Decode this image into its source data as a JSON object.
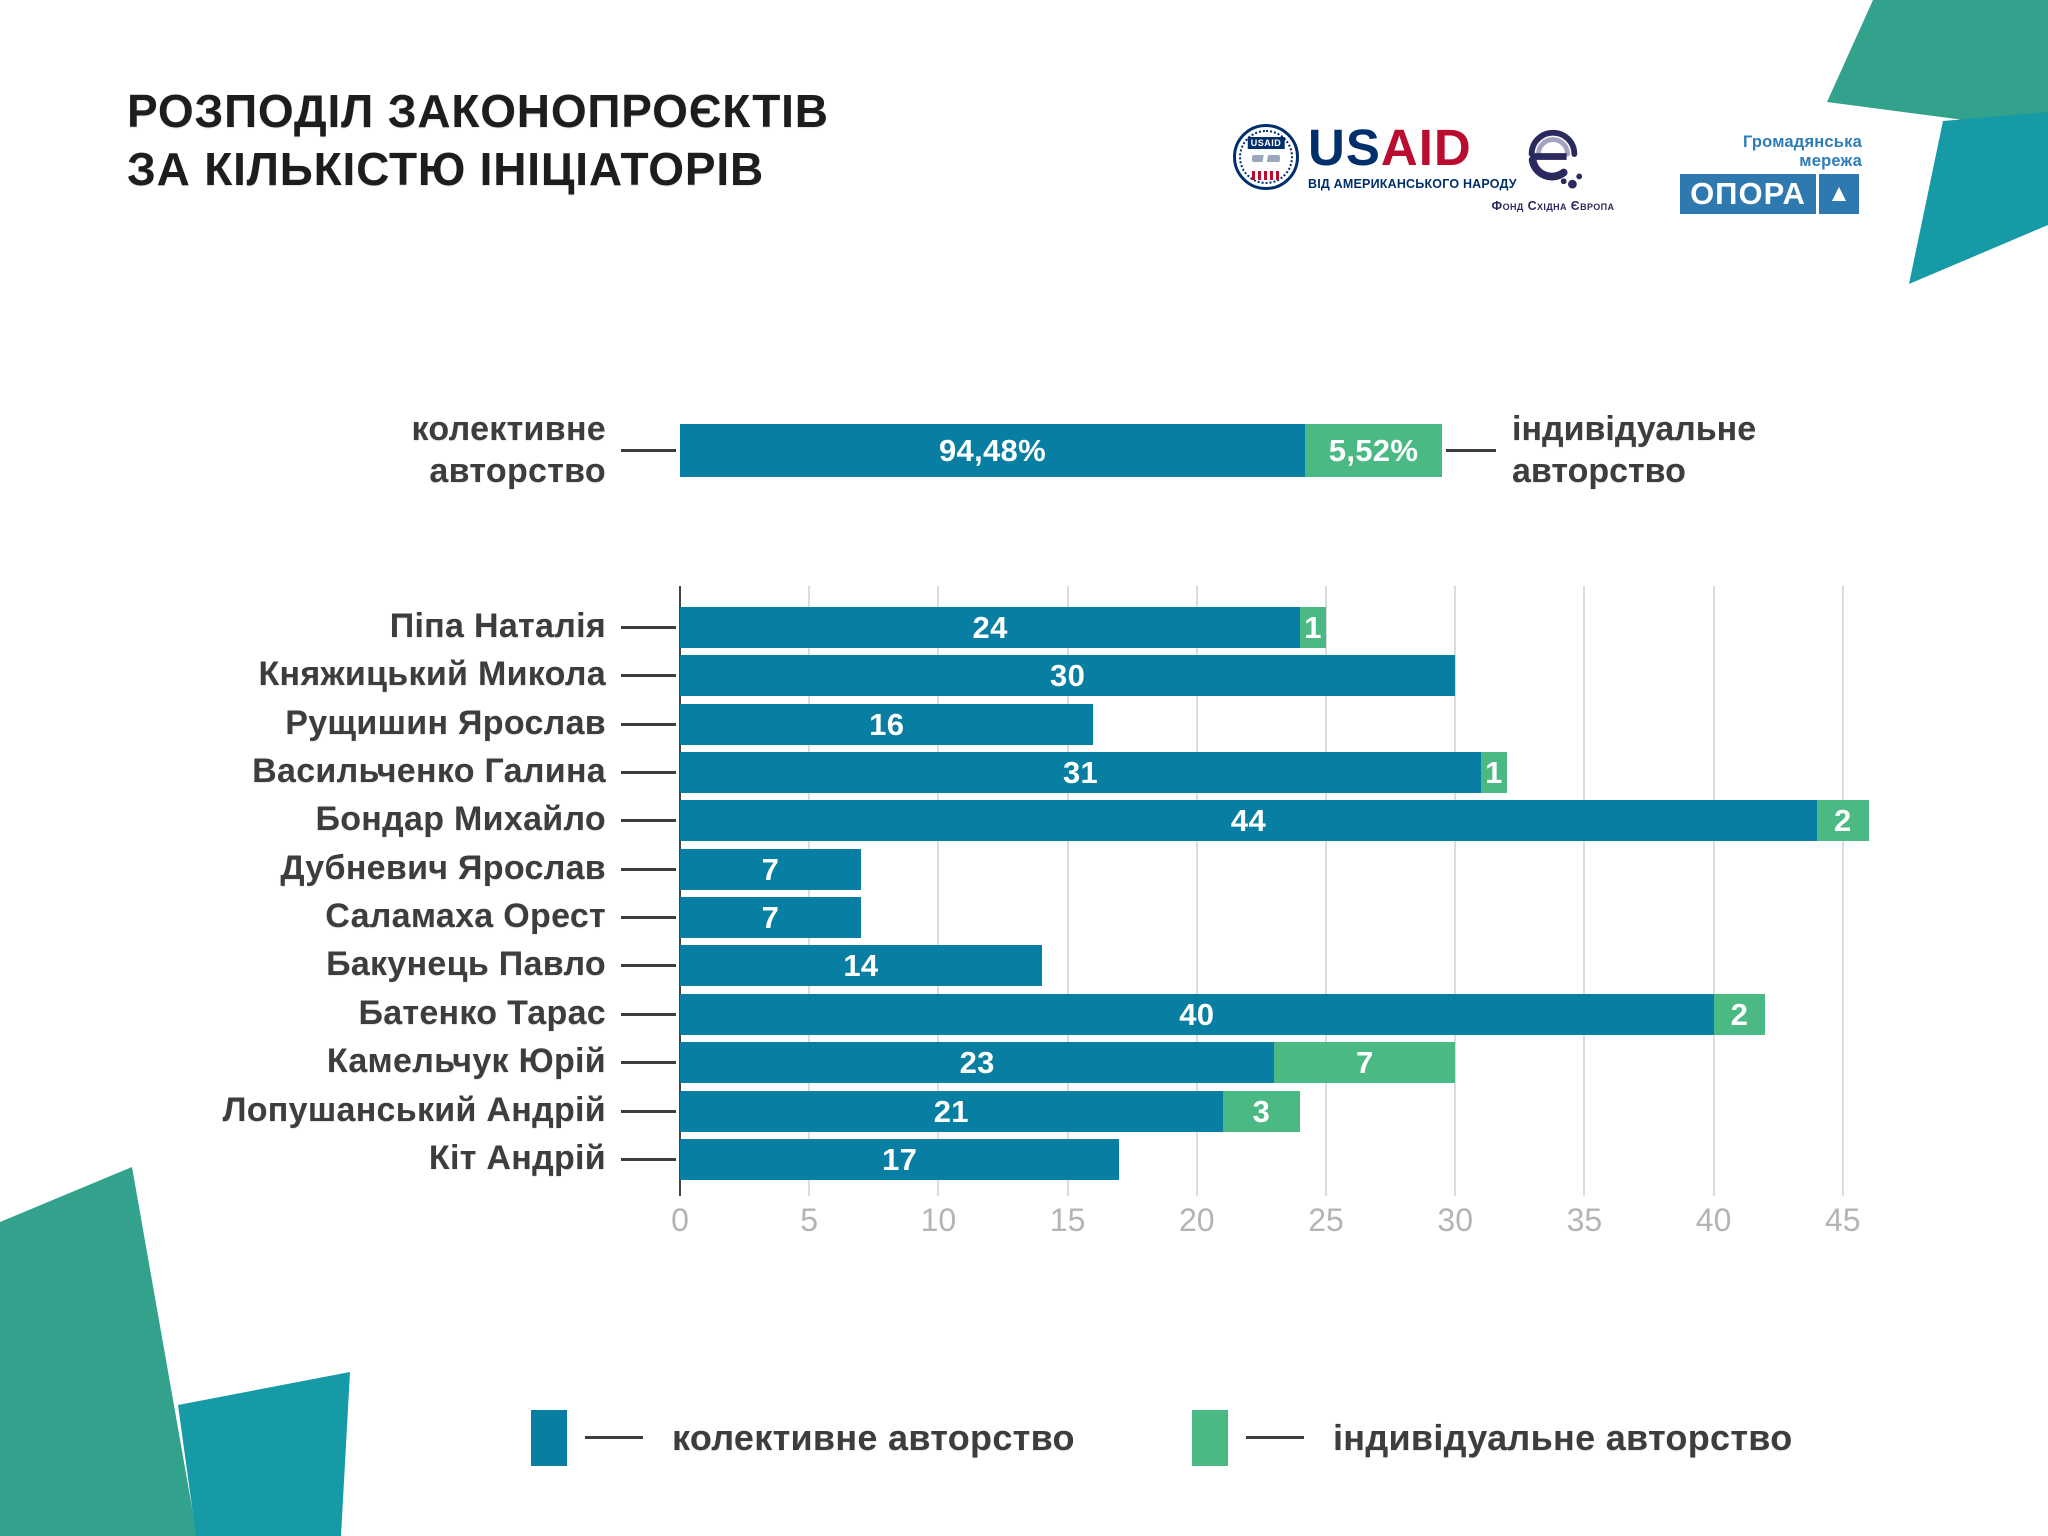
{
  "title": {
    "line1": "РОЗПОДІЛ ЗАКОНОПРОЄКТІВ",
    "line2": "ЗА КІЛЬКІСТЮ ІНІЦІАТОРІВ"
  },
  "logos": {
    "usaid": {
      "seal_label": "USAID",
      "word_us": "US",
      "word_aid": "AID",
      "tagline": "ВІД АМЕРИКАНСЬКОГО НАРОДУ"
    },
    "east_europe_foundation": {
      "name": "Фонд Східна Європа"
    },
    "opora": {
      "network_label": "Громадянська мережа",
      "name": "ОПОРА",
      "triangle_glyph": "▲"
    }
  },
  "summary_bar": {
    "left_label_line1": "колективне",
    "left_label_line2": "авторство",
    "right_label_line1": "індивідуальне",
    "right_label_line2": "авторство",
    "collective_value": "94,48%",
    "individual_value": "5,52%"
  },
  "chart_data": {
    "type": "bar",
    "orientation": "horizontal",
    "stacked": true,
    "categories": [
      "Піпа Наталія",
      "Княжицький Микола",
      "Рущишин Ярослав",
      "Васильченко Галина",
      "Бондар Михайло",
      "Дубневич Ярослав",
      "Саламаха Орест",
      "Бакунець Павло",
      "Батенко Тарас",
      "Камельчук Юрій",
      "Лопушанський Андрій",
      "Кіт Андрій"
    ],
    "series": [
      {
        "name": "колективне авторство",
        "color": "#087fa2",
        "values": [
          24,
          30,
          16,
          31,
          44,
          7,
          7,
          14,
          40,
          23,
          21,
          17
        ]
      },
      {
        "name": "індивідуальне авторство",
        "color": "#4ab983",
        "values": [
          1,
          0,
          0,
          1,
          2,
          0,
          0,
          0,
          2,
          7,
          3,
          0
        ]
      }
    ],
    "xticks": [
      0,
      5,
      10,
      15,
      20,
      25,
      30,
      35,
      40,
      45
    ],
    "xlim": [
      0,
      46
    ],
    "grid": true,
    "legend_position": "bottom",
    "summary": {
      "collective_pct": 94.48,
      "individual_pct": 5.52
    }
  },
  "legend": [
    {
      "label": "колективне авторство",
      "color": "#087fa2"
    },
    {
      "label": "індивідуальне авторство",
      "color": "#4ab983"
    }
  ],
  "colors": {
    "collective_teal": "#087fa2",
    "individual_green": "#4ab983",
    "corner_green": "#33a28c",
    "corner_teal": "#169aa6",
    "text_dark": "#3d3d3d",
    "tick_gray": "#b4b4b4",
    "grid_gray": "#dcdcdc",
    "axis_dark": "#454545",
    "usaid_navy": "#002f6c",
    "usaid_red": "#ba0c2f",
    "eef_indigo": "#2b2a5e",
    "opora_blue": "#2e7ab0"
  }
}
